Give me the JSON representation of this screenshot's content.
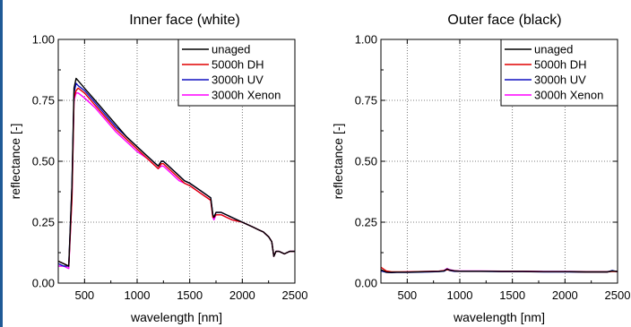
{
  "chart_data": [
    {
      "type": "line",
      "title": "Inner face (white)",
      "xlabel": "wavelength [nm]",
      "ylabel": "reflectance [-]",
      "xlim": [
        250,
        2500
      ],
      "ylim": [
        0,
        1
      ],
      "xticks": [
        500,
        1000,
        1500,
        2000,
        2500
      ],
      "xtick_labels": [
        "500",
        "1000",
        "1500",
        "2000",
        "2500"
      ],
      "yticks": [
        0,
        0.25,
        0.5,
        0.75,
        1
      ],
      "ytick_labels": [
        "0.00",
        "0.25",
        "0.50",
        "0.75",
        "1.00"
      ],
      "grid": true,
      "legend_position": "top-right",
      "x": [
        250,
        300,
        350,
        380,
        400,
        420,
        440,
        500,
        600,
        700,
        800,
        900,
        1000,
        1100,
        1150,
        1200,
        1230,
        1250,
        1300,
        1350,
        1400,
        1450,
        1500,
        1600,
        1700,
        1720,
        1730,
        1750,
        1800,
        1900,
        2000,
        2100,
        2150,
        2200,
        2250,
        2280,
        2300,
        2320,
        2350,
        2400,
        2450,
        2500
      ],
      "series": [
        {
          "name": "unaged",
          "color": "#000000",
          "values": [
            0.09,
            0.08,
            0.07,
            0.4,
            0.8,
            0.84,
            0.83,
            0.8,
            0.75,
            0.7,
            0.65,
            0.6,
            0.56,
            0.52,
            0.5,
            0.48,
            0.5,
            0.5,
            0.48,
            0.46,
            0.44,
            0.42,
            0.41,
            0.38,
            0.35,
            0.28,
            0.27,
            0.29,
            0.29,
            0.27,
            0.25,
            0.23,
            0.22,
            0.21,
            0.19,
            0.17,
            0.11,
            0.13,
            0.13,
            0.12,
            0.13,
            0.13
          ]
        },
        {
          "name": "5000h DH",
          "color": "#e00000",
          "values": [
            0.09,
            0.08,
            0.07,
            0.35,
            0.76,
            0.79,
            0.8,
            0.78,
            0.73,
            0.68,
            0.63,
            0.59,
            0.55,
            0.51,
            0.49,
            0.47,
            0.49,
            0.49,
            0.47,
            0.45,
            0.43,
            0.41,
            0.4,
            0.37,
            0.34,
            0.27,
            0.27,
            0.28,
            0.28,
            0.26,
            0.25,
            0.23,
            0.22,
            0.21,
            0.19,
            0.17,
            0.11,
            0.13,
            0.13,
            0.12,
            0.13,
            0.13
          ]
        },
        {
          "name": "3000h UV",
          "color": "#1010c0",
          "values": [
            0.08,
            0.07,
            0.07,
            0.4,
            0.78,
            0.82,
            0.81,
            0.79,
            0.74,
            0.69,
            0.64,
            0.6,
            0.56,
            0.52,
            0.5,
            0.48,
            0.5,
            0.5,
            0.48,
            0.46,
            0.44,
            0.42,
            0.41,
            0.38,
            0.35,
            0.28,
            0.27,
            0.29,
            0.29,
            0.27,
            0.25,
            0.23,
            0.22,
            0.21,
            0.19,
            0.17,
            0.11,
            0.13,
            0.13,
            0.12,
            0.13,
            0.13
          ]
        },
        {
          "name": "3000h Xenon",
          "color": "#ff00ff",
          "values": [
            0.07,
            0.07,
            0.06,
            0.35,
            0.75,
            0.78,
            0.78,
            0.76,
            0.72,
            0.67,
            0.62,
            0.58,
            0.54,
            0.51,
            0.49,
            0.47,
            0.48,
            0.48,
            0.46,
            0.44,
            0.42,
            0.41,
            0.4,
            0.37,
            0.34,
            0.27,
            0.26,
            0.28,
            0.28,
            0.26,
            0.25,
            0.23,
            0.22,
            0.21,
            0.19,
            0.17,
            0.11,
            0.13,
            0.13,
            0.12,
            0.13,
            0.13
          ]
        }
      ]
    },
    {
      "type": "line",
      "title": "Outer face (black)",
      "xlabel": "wavelength [nm]",
      "ylabel": "reflectance [-]",
      "xlim": [
        250,
        2500
      ],
      "ylim": [
        0,
        1
      ],
      "xticks": [
        500,
        1000,
        1500,
        2000,
        2500
      ],
      "xtick_labels": [
        "500",
        "1000",
        "1500",
        "2000",
        "2500"
      ],
      "yticks": [
        0,
        0.25,
        0.5,
        0.75,
        1
      ],
      "ytick_labels": [
        "0.00",
        "0.25",
        "0.50",
        "0.75",
        "1.00"
      ],
      "grid": true,
      "legend_position": "top-right",
      "x": [
        250,
        300,
        350,
        400,
        500,
        600,
        700,
        800,
        850,
        880,
        900,
        950,
        1000,
        1200,
        1400,
        1600,
        1800,
        2000,
        2200,
        2400,
        2450,
        2500
      ],
      "series": [
        {
          "name": "unaged",
          "color": "#000000",
          "values": [
            0.055,
            0.045,
            0.044,
            0.045,
            0.045,
            0.046,
            0.047,
            0.048,
            0.05,
            0.058,
            0.054,
            0.05,
            0.049,
            0.049,
            0.048,
            0.048,
            0.047,
            0.047,
            0.046,
            0.046,
            0.05,
            0.048
          ]
        },
        {
          "name": "5000h DH",
          "color": "#e00000",
          "values": [
            0.065,
            0.05,
            0.046,
            0.046,
            0.046,
            0.047,
            0.048,
            0.049,
            0.051,
            0.055,
            0.053,
            0.05,
            0.049,
            0.049,
            0.048,
            0.048,
            0.047,
            0.047,
            0.046,
            0.046,
            0.048,
            0.047
          ]
        },
        {
          "name": "3000h UV",
          "color": "#1010c0",
          "values": [
            0.05,
            0.044,
            0.043,
            0.044,
            0.044,
            0.045,
            0.046,
            0.047,
            0.049,
            0.056,
            0.052,
            0.048,
            0.048,
            0.048,
            0.047,
            0.047,
            0.046,
            0.046,
            0.045,
            0.045,
            0.052,
            0.046
          ]
        },
        {
          "name": "3000h Xenon",
          "color": "#ff00ff",
          "values": [
            0.052,
            0.046,
            0.045,
            0.045,
            0.046,
            0.047,
            0.048,
            0.049,
            0.052,
            0.06,
            0.055,
            0.051,
            0.05,
            0.05,
            0.049,
            0.049,
            0.048,
            0.048,
            0.047,
            0.047,
            0.049,
            0.048
          ]
        }
      ]
    }
  ]
}
